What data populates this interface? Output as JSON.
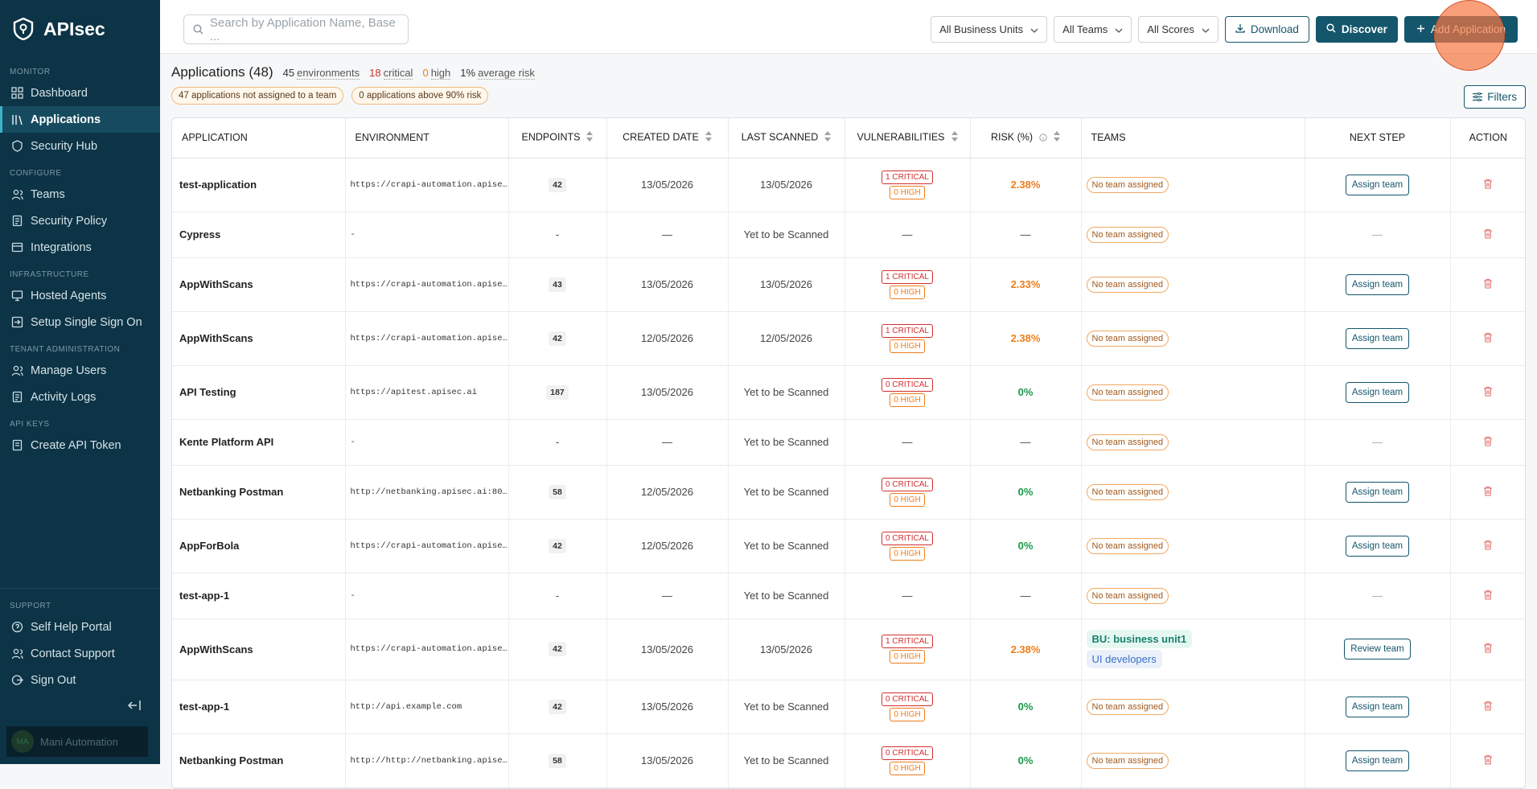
{
  "sidebar": {
    "brand": "APIsec",
    "sections": [
      {
        "label": "MONITOR",
        "items": [
          {
            "label": "Dashboard",
            "icon": "grid"
          },
          {
            "label": "Applications",
            "icon": "apps",
            "active": true
          },
          {
            "label": "Security Hub",
            "icon": "shield"
          }
        ]
      },
      {
        "label": "CONFIGURE",
        "items": [
          {
            "label": "Teams",
            "icon": "users"
          },
          {
            "label": "Security Policy",
            "icon": "doc"
          },
          {
            "label": "Integrations",
            "icon": "box"
          }
        ]
      },
      {
        "label": "INFRASTRUCTURE",
        "items": [
          {
            "label": "Hosted Agents",
            "icon": "monitor"
          },
          {
            "label": "Setup Single Sign On",
            "icon": "login"
          }
        ]
      },
      {
        "label": "TENANT ADMINISTRATION",
        "items": [
          {
            "label": "Manage Users",
            "icon": "users"
          },
          {
            "label": "Activity Logs",
            "icon": "doc"
          }
        ]
      },
      {
        "label": "API KEYS",
        "items": [
          {
            "label": "Create API Token",
            "icon": "key"
          }
        ]
      }
    ],
    "support": {
      "label": "SUPPORT",
      "items": [
        {
          "label": "Self Help Portal",
          "icon": "help"
        },
        {
          "label": "Contact Support",
          "icon": "users"
        },
        {
          "label": "Sign Out",
          "icon": "logout"
        }
      ]
    },
    "user": {
      "initials": "MA",
      "name": "Mani Automation"
    }
  },
  "header": {
    "search_placeholder": "Search by Application Name, Base ...",
    "dropdowns": [
      "All Business Units",
      "All Teams",
      "All Scores"
    ],
    "buttons": [
      "Download",
      "Discover",
      "Add Application"
    ]
  },
  "summary": {
    "title": "Applications (48)",
    "stats": [
      {
        "value": "45",
        "label": "environments",
        "color": "#333333"
      },
      {
        "value": "18",
        "label": "critical",
        "color": "#d32f2f"
      },
      {
        "value": "0",
        "label": "high",
        "color": "#ef7d1a"
      },
      {
        "value": "1%",
        "label": "average risk",
        "color": "#333333"
      }
    ],
    "badges": [
      "47 applications not assigned to a team",
      "0 applications above 90% risk"
    ],
    "filters_button": "Filters"
  },
  "table": {
    "columns": [
      {
        "label": "APPLICATION"
      },
      {
        "label": "ENVIRONMENT"
      },
      {
        "label": "ENDPOINTS",
        "sortable": true
      },
      {
        "label": "CREATED DATE",
        "sortable": true
      },
      {
        "label": "LAST SCANNED",
        "sortable": true
      },
      {
        "label": "VULNERABILITIES",
        "sortable": true
      },
      {
        "label": "RISK (%)",
        "sortable": true,
        "info": true
      },
      {
        "label": "TEAMS"
      },
      {
        "label": "NEXT STEP"
      },
      {
        "label": "ACTION"
      }
    ],
    "rows": [
      {
        "name": "test-application",
        "environment": "https://crapi-automation.apise…",
        "endpoints": 42,
        "created": "13/05/2026",
        "scanned": "13/05/2026",
        "vulnerabilities": [
          "1 CRITICAL",
          "0 HIGH"
        ],
        "risk": "2.38%",
        "teams": [
          "No team assigned"
        ],
        "next_step": "Assign team"
      },
      {
        "name": "Cypress",
        "environment": "-",
        "endpoints": "-",
        "created": "—",
        "scanned": "Yet to be Scanned",
        "vulnerabilities": "—",
        "risk": "—",
        "teams": [
          "No team assigned"
        ],
        "next_step": "—"
      },
      {
        "name": "AppWithScans",
        "environment": "https://crapi-automation.apise…",
        "endpoints": 43,
        "created": "13/05/2026",
        "scanned": "13/05/2026",
        "vulnerabilities": [
          "1 CRITICAL",
          "0 HIGH"
        ],
        "risk": "2.33%",
        "teams": [
          "No team assigned"
        ],
        "next_step": "Assign team"
      },
      {
        "name": "AppWithScans",
        "environment": "https://crapi-automation.apise…",
        "endpoints": 42,
        "created": "12/05/2026",
        "scanned": "12/05/2026",
        "vulnerabilities": [
          "1 CRITICAL",
          "0 HIGH"
        ],
        "risk": "2.38%",
        "teams": [
          "No team assigned"
        ],
        "next_step": "Assign team"
      },
      {
        "name": "API Testing",
        "environment": "https://apitest.apisec.ai",
        "endpoints": 187,
        "created": "13/05/2026",
        "scanned": "Yet to be Scanned",
        "vulnerabilities": [
          "0 CRITICAL",
          "0 HIGH"
        ],
        "risk": "0%",
        "teams": [
          "No team assigned"
        ],
        "next_step": "Assign team"
      },
      {
        "name": "Kente Platform API",
        "environment": "-",
        "endpoints": "-",
        "created": "—",
        "scanned": "Yet to be Scanned",
        "vulnerabilities": "—",
        "risk": "—",
        "teams": [
          "No team assigned"
        ],
        "next_step": "—"
      },
      {
        "name": "Netbanking Postman",
        "environment": "http://netbanking.apisec.ai:80…",
        "endpoints": 58,
        "created": "12/05/2026",
        "scanned": "Yet to be Scanned",
        "vulnerabilities": [
          "0 CRITICAL",
          "0 HIGH"
        ],
        "risk": "0%",
        "teams": [
          "No team assigned"
        ],
        "next_step": "Assign team"
      },
      {
        "name": "AppForBola",
        "environment": "https://crapi-automation.apise…",
        "endpoints": 42,
        "created": "12/05/2026",
        "scanned": "Yet to be Scanned",
        "vulnerabilities": [
          "0 CRITICAL",
          "0 HIGH"
        ],
        "risk": "0%",
        "teams": [
          "No team assigned"
        ],
        "next_step": "Assign team"
      },
      {
        "name": "test-app-1",
        "environment": "-",
        "endpoints": "-",
        "created": "—",
        "scanned": "Yet to be Scanned",
        "vulnerabilities": "—",
        "risk": "—",
        "teams": [
          "No team assigned"
        ],
        "next_step": "—"
      },
      {
        "name": "AppWithScans",
        "environment": "https://crapi-automation.apise…",
        "endpoints": 42,
        "created": "13/05/2026",
        "scanned": "13/05/2026",
        "vulnerabilities": [
          "1 CRITICAL",
          "0 HIGH"
        ],
        "risk": "2.38%",
        "teams": [
          "BU: business unit1",
          "UI developers"
        ],
        "next_step": "Review team"
      },
      {
        "name": "test-app-1",
        "environment": "http://api.example.com",
        "endpoints": 42,
        "created": "13/05/2026",
        "scanned": "Yet to be Scanned",
        "vulnerabilities": [
          "0 CRITICAL",
          "0 HIGH"
        ],
        "risk": "0%",
        "teams": [
          "No team assigned"
        ],
        "next_step": "Assign team"
      },
      {
        "name": "Netbanking Postman",
        "environment": "http://http://netbanking.apise…",
        "endpoints": 58,
        "created": "13/05/2026",
        "scanned": "Yet to be Scanned",
        "vulnerabilities": [
          "0 CRITICAL",
          "0 HIGH"
        ],
        "risk": "0%",
        "teams": [
          "No team assigned"
        ],
        "next_step": "Assign team"
      }
    ]
  }
}
